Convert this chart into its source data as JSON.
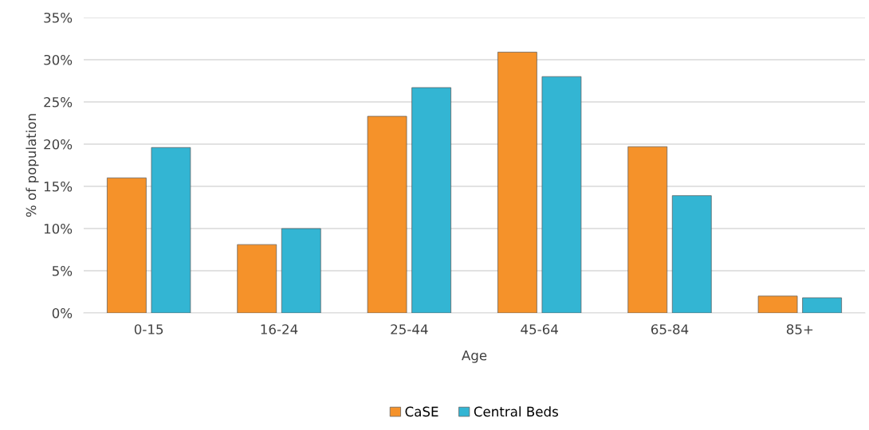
{
  "chart_data": {
    "type": "bar",
    "xlabel": "Age",
    "ylabel": "% of population",
    "categories": [
      "0-15",
      "16-24",
      "25-44",
      "45-64",
      "65-84",
      "85+"
    ],
    "series": [
      {
        "name": "CaSE",
        "color": "#f5922a",
        "values": [
          16.0,
          8.1,
          23.3,
          30.9,
          19.7,
          2.0
        ]
      },
      {
        "name": "Central Beds",
        "color": "#33b5d3",
        "values": [
          19.6,
          10.0,
          26.7,
          28.0,
          13.9,
          1.8
        ]
      }
    ],
    "ylim": [
      0,
      35
    ],
    "yticks": [
      {
        "value": 0,
        "label": "0%"
      },
      {
        "value": 5,
        "label": "5%"
      },
      {
        "value": 10,
        "label": "10%"
      },
      {
        "value": 15,
        "label": "15%"
      },
      {
        "value": 20,
        "label": "20%"
      },
      {
        "value": 25,
        "label": "25%"
      },
      {
        "value": 30,
        "label": "30%"
      },
      {
        "value": 35,
        "label": "35%"
      }
    ],
    "grid": "y",
    "legend": "bottom"
  }
}
